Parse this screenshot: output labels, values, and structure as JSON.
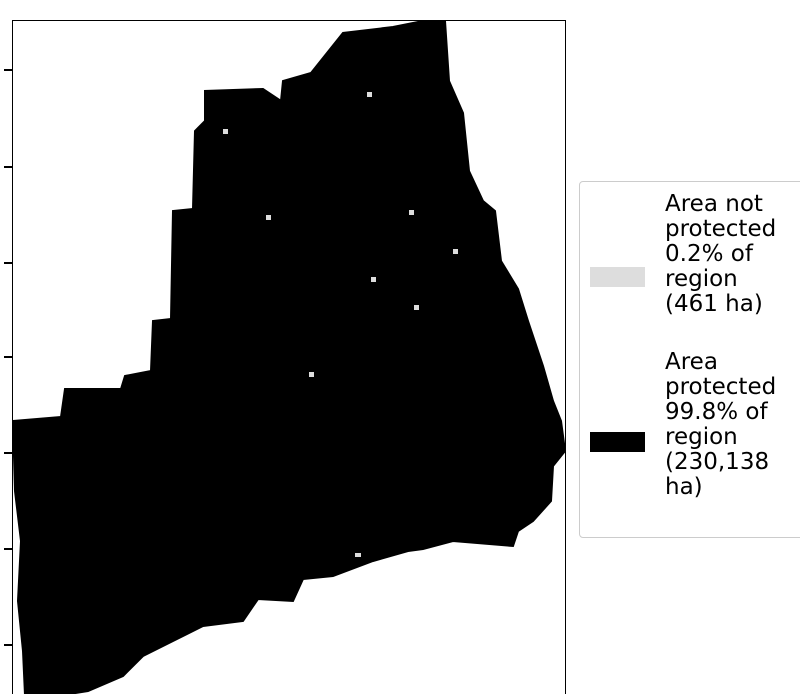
{
  "map": {
    "region_fill": "#000000",
    "gap_fill": "#dddddd"
  },
  "legend": {
    "entries": [
      {
        "label": "Area not\nprotected\n0.2% of\nregion\n(461 ha)",
        "color": "#dddddd"
      },
      {
        "label": "Area\nprotected\n99.8% of\nregion\n(230,138\nha)",
        "color": "#000000"
      }
    ]
  }
}
